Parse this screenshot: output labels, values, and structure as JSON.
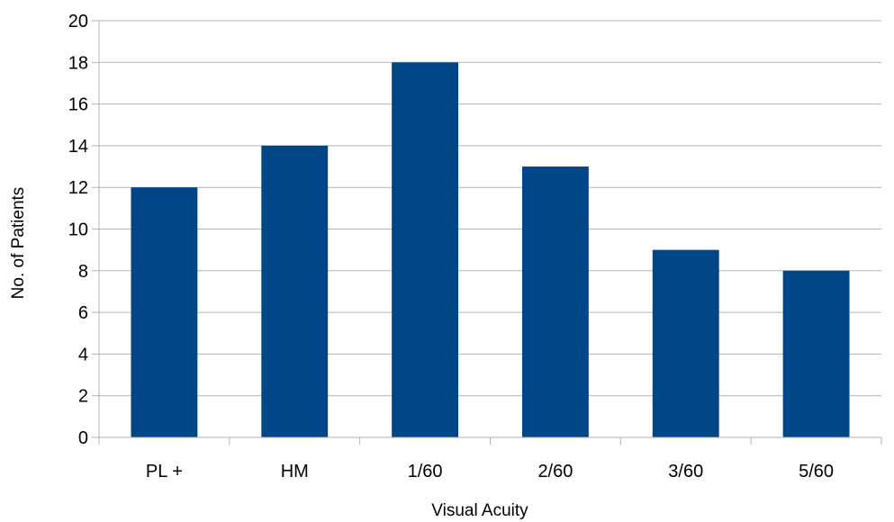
{
  "chart_data": {
    "type": "bar",
    "title": "",
    "xlabel": "Visual Acuity",
    "ylabel": "No. of Patients",
    "categories": [
      "PL +",
      "HM",
      "1/60",
      "2/60",
      "3/60",
      "5/60"
    ],
    "series": [
      {
        "values": [
          12,
          14,
          18,
          13,
          9,
          8
        ]
      }
    ],
    "ylim": [
      0,
      20
    ],
    "yticks": [
      "0",
      "2",
      "4",
      "6",
      "8",
      "10",
      "12",
      "14",
      "16",
      "18",
      "20"
    ],
    "grid": "horizontal",
    "legend": "none",
    "colors": {
      "bar": "#004586",
      "grid": "#b3b3b3",
      "axis": "#b3b3b3"
    }
  }
}
